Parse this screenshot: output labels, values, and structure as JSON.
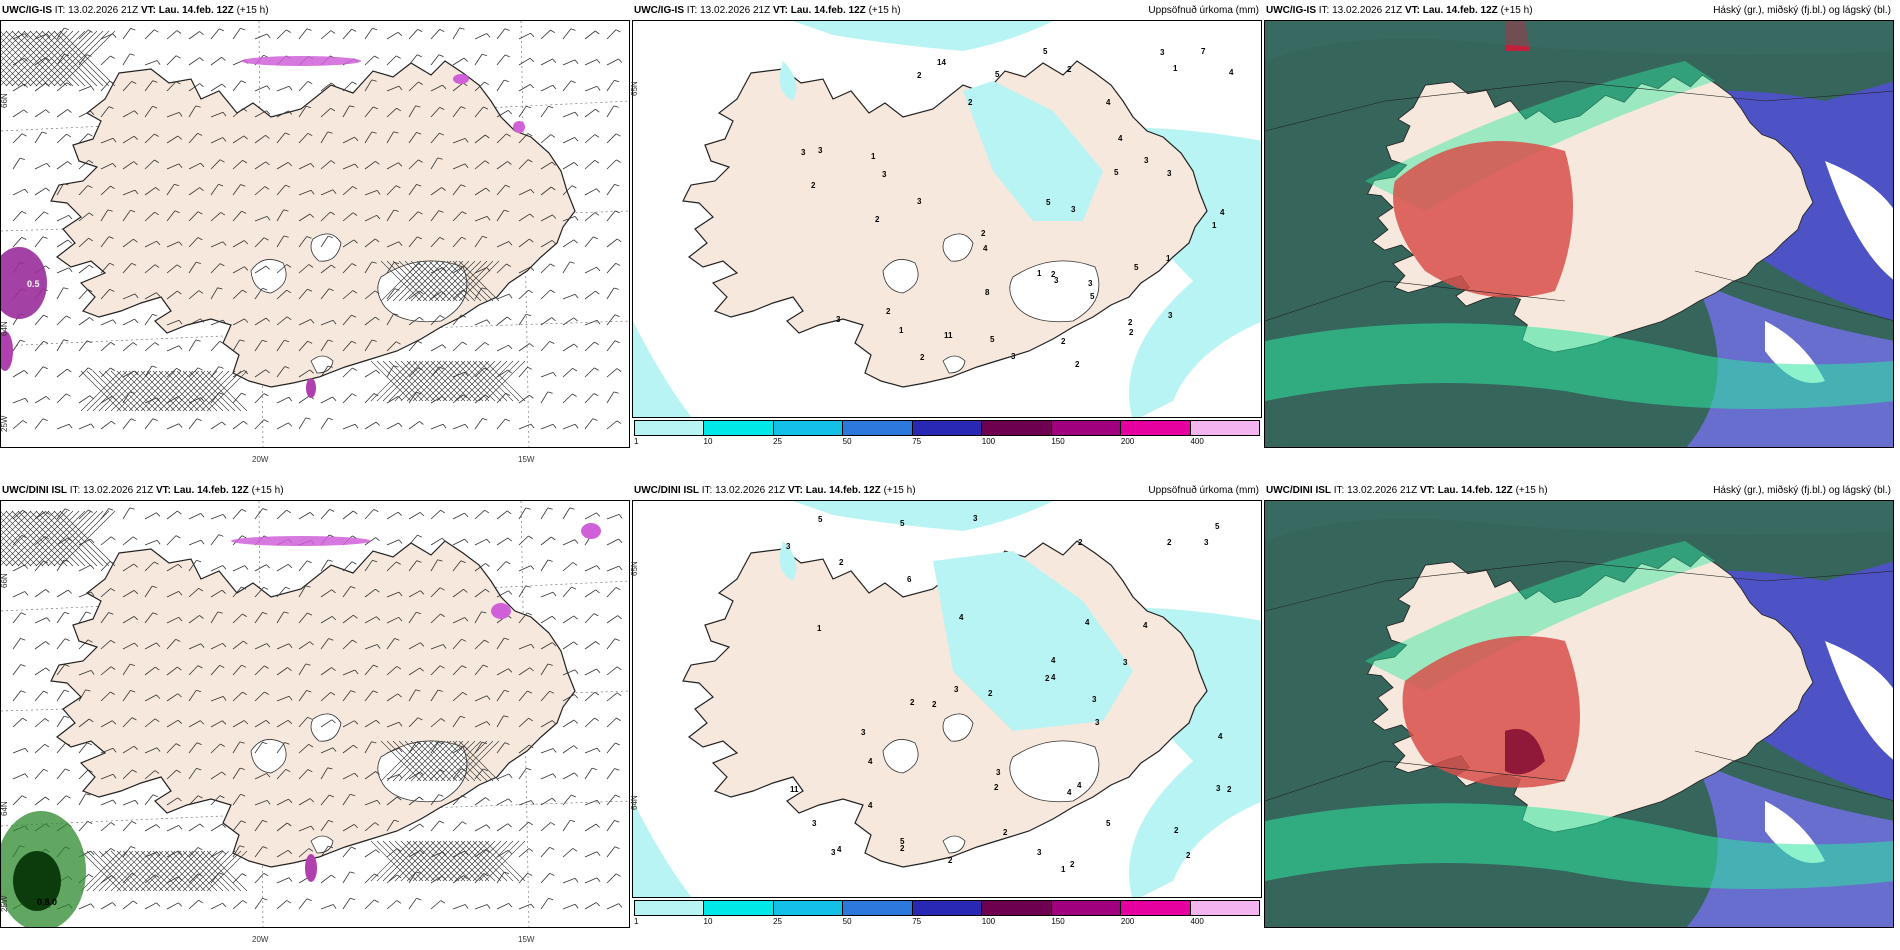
{
  "panels": [
    {
      "model": "UWC/IG-IS",
      "it_label": "IT:",
      "it": "13.02.2026 21Z",
      "vt_label": "VT:",
      "vt": "Lau. 14.feb. 12Z",
      "lead": "(+15 h)",
      "right": ""
    },
    {
      "model": "UWC/IG-IS",
      "it_label": "IT:",
      "it": "13.02.2026 21Z",
      "vt_label": "VT:",
      "vt": "Lau. 14.feb. 12Z",
      "lead": "(+15 h)",
      "right": "Uppsöfnuð úrkoma (mm)"
    },
    {
      "model": "UWC/IG-IS",
      "it_label": "IT:",
      "it": "13.02.2026 21Z",
      "vt_label": "VT:",
      "vt": "Lau. 14.feb. 12Z",
      "lead": "(+15 h)",
      "right": "Háský (gr.), miðský (fj.bl.) og lágský (bl.)"
    },
    {
      "model": "UWC/DINI ISL",
      "it_label": "IT:",
      "it": "13.02.2026 21Z",
      "vt_label": "VT:",
      "vt": "Lau. 14.feb. 12Z",
      "lead": "(+15 h)",
      "right": ""
    },
    {
      "model": "UWC/DINI ISL",
      "it_label": "IT:",
      "it": "13.02.2026 21Z",
      "vt_label": "VT:",
      "vt": "Lau. 14.feb. 12Z",
      "lead": "(+15 h)",
      "right": "Uppsöfnuð úrkoma (mm)"
    },
    {
      "model": "UWC/DINI ISL",
      "it_label": "IT:",
      "it": "13.02.2026 21Z",
      "vt_label": "VT:",
      "vt": "Lau. 14.feb. 12Z",
      "lead": "(+15 h)",
      "right": "Háský (gr.), miðský (fj.bl.) og lágský (bl.)"
    }
  ],
  "grid_labels": {
    "lat_66": "66N",
    "lat_65": "65N",
    "lat_64": "64N",
    "lat_63": "63N",
    "lon_20": "20W",
    "lon_15": "15W",
    "lon_25": "25W"
  },
  "colorbar": {
    "ticks": [
      "1",
      "10",
      "25",
      "50",
      "75",
      "100",
      "150",
      "200",
      "400"
    ],
    "colors": [
      "#b8f4f4",
      "#00e8e8",
      "#14c0e8",
      "#2d78dc",
      "#2828b4",
      "#6e0050",
      "#a0007e",
      "#e600a0",
      "#f4b4f0"
    ]
  },
  "land_color": "#f6e8dc",
  "precip_numbers_top": [
    "2",
    "2",
    "2",
    "1",
    "3",
    "2",
    "1",
    "3",
    "4",
    "1",
    "3",
    "3",
    "2",
    "2",
    "5",
    "3",
    "2",
    "1",
    "5",
    "3",
    "2",
    "3",
    "2",
    "2",
    "3",
    "4",
    "2",
    "3",
    "3",
    "2",
    "5",
    "7",
    "4",
    "11",
    "14",
    "5",
    "5",
    "3",
    "4",
    "3",
    "5",
    "5",
    "4",
    "3",
    "2",
    "1",
    "1",
    "8"
  ],
  "precip_numbers_bottom": [
    "2",
    "1",
    "5",
    "5",
    "5",
    "2",
    "2",
    "2",
    "3",
    "4",
    "2",
    "2",
    "3",
    "2",
    "2",
    "2",
    "1",
    "2",
    "2",
    "3",
    "4",
    "5",
    "4",
    "3",
    "4",
    "3",
    "11",
    "4",
    "5",
    "3",
    "2",
    "2",
    "3",
    "3",
    "4",
    "3",
    "3",
    "3",
    "4",
    "2",
    "4",
    "3",
    "2",
    "4",
    "6",
    "4",
    "4",
    "3"
  ],
  "wind_labels": {
    "p1": "0.5",
    "p4": "0.8.0"
  }
}
